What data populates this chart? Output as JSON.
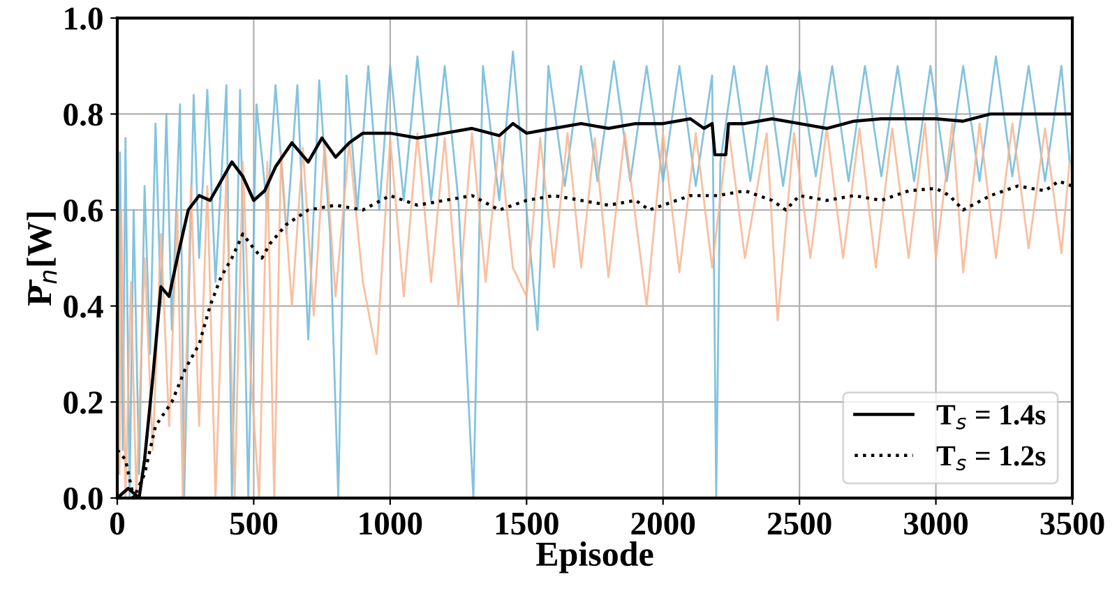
{
  "chart_data": {
    "type": "line",
    "xlabel": "Episode",
    "ylabel": "P̄$_{n}$[W]",
    "xlim": [
      0,
      3500
    ],
    "xticks": [
      0,
      500,
      1000,
      1500,
      2000,
      2500,
      3000,
      3500
    ],
    "ylim": [
      0,
      1.0
    ],
    "yticks": [
      {
        "value": 0,
        "label": "0.0"
      },
      0.2,
      0.4,
      0.6,
      0.8,
      {
        "value": 1.0,
        "label": "1.0"
      }
    ],
    "grid": true,
    "legend": "bottom right",
    "series": [
      {
        "color": "#6db9d9",
        "x": [
          0,
          10,
          20,
          30,
          45,
          60,
          80,
          100,
          120,
          140,
          160,
          180,
          200,
          230,
          245,
          280,
          300,
          330,
          360,
          400,
          420,
          450,
          480,
          510,
          550,
          580,
          620,
          660,
          700,
          740,
          780,
          810,
          840,
          880,
          920,
          960,
          1000,
          1050,
          1100,
          1150,
          1200,
          1250,
          1305,
          1340,
          1400,
          1450,
          1500,
          1540,
          1580,
          1640,
          1700,
          1760,
          1820,
          1880,
          1940,
          2000,
          2060,
          2120,
          2180,
          2195,
          2210,
          2260,
          2320,
          2380,
          2440,
          2500,
          2560,
          2620,
          2680,
          2740,
          2800,
          2860,
          2920,
          2980,
          3040,
          3100,
          3160,
          3220,
          3280,
          3340,
          3400,
          3460,
          3490
        ],
        "values": [
          0.0,
          0.72,
          0.1,
          0.75,
          0.0,
          0.6,
          0.05,
          0.65,
          0.3,
          0.78,
          0.4,
          0.8,
          0.35,
          0.82,
          0.0,
          0.84,
          0.5,
          0.85,
          0.45,
          0.86,
          0.0,
          0.85,
          0.0,
          0.82,
          0.6,
          0.86,
          0.55,
          0.86,
          0.33,
          0.87,
          0.55,
          0.0,
          0.88,
          0.6,
          0.9,
          0.6,
          0.9,
          0.62,
          0.92,
          0.62,
          0.9,
          0.62,
          0.0,
          0.9,
          0.62,
          0.93,
          0.6,
          0.35,
          0.9,
          0.65,
          0.9,
          0.66,
          0.91,
          0.66,
          0.9,
          0.66,
          0.9,
          0.65,
          0.88,
          0.0,
          0.7,
          0.9,
          0.66,
          0.9,
          0.65,
          0.89,
          0.67,
          0.9,
          0.66,
          0.9,
          0.67,
          0.9,
          0.66,
          0.9,
          0.66,
          0.9,
          0.66,
          0.92,
          0.67,
          0.9,
          0.66,
          0.9,
          0.7
        ]
      },
      {
        "color": "#f8b48e",
        "x": [
          8,
          15,
          30,
          50,
          70,
          100,
          130,
          160,
          190,
          220,
          240,
          270,
          300,
          330,
          360,
          400,
          430,
          460,
          490,
          520,
          550,
          575,
          600,
          640,
          680,
          720,
          760,
          800,
          850,
          900,
          950,
          1000,
          1050,
          1100,
          1150,
          1200,
          1250,
          1300,
          1350,
          1400,
          1450,
          1500,
          1550,
          1600,
          1650,
          1700,
          1750,
          1800,
          1860,
          1940,
          2000,
          2060,
          2120,
          2180,
          2240,
          2300,
          2380,
          2420,
          2480,
          2540,
          2600,
          2660,
          2720,
          2780,
          2840,
          2900,
          2960,
          3000,
          3060,
          3100,
          3160,
          3220,
          3280,
          3340,
          3400,
          3460,
          3490
        ],
        "values": [
          0.05,
          0.6,
          0.0,
          0.45,
          0.0,
          0.5,
          0.1,
          0.55,
          0.15,
          0.6,
          0.0,
          0.65,
          0.15,
          0.65,
          0.0,
          0.68,
          0.0,
          0.7,
          0.25,
          0.0,
          0.7,
          0.0,
          0.72,
          0.4,
          0.73,
          0.38,
          0.74,
          0.42,
          0.74,
          0.45,
          0.3,
          0.75,
          0.42,
          0.76,
          0.45,
          0.75,
          0.4,
          0.76,
          0.45,
          0.75,
          0.48,
          0.42,
          0.75,
          0.48,
          0.76,
          0.48,
          0.75,
          0.46,
          0.76,
          0.4,
          0.76,
          0.47,
          0.76,
          0.48,
          0.77,
          0.5,
          0.76,
          0.37,
          0.76,
          0.5,
          0.77,
          0.5,
          0.77,
          0.48,
          0.77,
          0.5,
          0.78,
          0.5,
          0.78,
          0.47,
          0.78,
          0.5,
          0.78,
          0.52,
          0.77,
          0.51,
          0.7
        ]
      },
      {
        "name": "T$_{s}$ = 1.4s",
        "color": "#000000",
        "line_style": "solid",
        "x": [
          0,
          40,
          80,
          100,
          130,
          160,
          190,
          220,
          260,
          300,
          340,
          380,
          420,
          460,
          500,
          540,
          580,
          640,
          700,
          750,
          800,
          850,
          900,
          1000,
          1100,
          1200,
          1300,
          1400,
          1450,
          1500,
          1600,
          1700,
          1800,
          1900,
          2000,
          2100,
          2150,
          2180,
          2190,
          2230,
          2240,
          2300,
          2400,
          2500,
          2600,
          2700,
          2800,
          2900,
          3000,
          3100,
          3200,
          3300,
          3400,
          3500
        ],
        "values": [
          0.0,
          0.02,
          0.0,
          0.08,
          0.25,
          0.44,
          0.42,
          0.5,
          0.6,
          0.63,
          0.62,
          0.66,
          0.7,
          0.67,
          0.62,
          0.64,
          0.69,
          0.74,
          0.7,
          0.75,
          0.71,
          0.74,
          0.76,
          0.76,
          0.75,
          0.76,
          0.77,
          0.755,
          0.78,
          0.76,
          0.77,
          0.78,
          0.77,
          0.78,
          0.78,
          0.79,
          0.77,
          0.78,
          0.715,
          0.715,
          0.78,
          0.78,
          0.79,
          0.78,
          0.77,
          0.785,
          0.79,
          0.79,
          0.79,
          0.785,
          0.8,
          0.8,
          0.8,
          0.8
        ]
      },
      {
        "name": "T$_{s}$ = 1.2s",
        "color": "#000000",
        "line_style": "dotted",
        "x": [
          0,
          30,
          60,
          100,
          140,
          200,
          250,
          300,
          340,
          380,
          420,
          460,
          500,
          530,
          560,
          620,
          700,
          800,
          900,
          1000,
          1100,
          1200,
          1300,
          1400,
          1500,
          1600,
          1700,
          1800,
          1900,
          1950,
          2000,
          2100,
          2200,
          2300,
          2400,
          2450,
          2500,
          2600,
          2700,
          2800,
          2900,
          3000,
          3050,
          3100,
          3200,
          3300,
          3400,
          3450,
          3500
        ],
        "values": [
          0.1,
          0.08,
          0.0,
          0.05,
          0.15,
          0.2,
          0.27,
          0.32,
          0.4,
          0.46,
          0.5,
          0.55,
          0.52,
          0.5,
          0.53,
          0.57,
          0.6,
          0.61,
          0.6,
          0.63,
          0.61,
          0.62,
          0.63,
          0.6,
          0.62,
          0.63,
          0.62,
          0.61,
          0.62,
          0.6,
          0.61,
          0.63,
          0.63,
          0.64,
          0.62,
          0.6,
          0.63,
          0.62,
          0.63,
          0.62,
          0.64,
          0.645,
          0.63,
          0.6,
          0.63,
          0.65,
          0.64,
          0.66,
          0.65
        ]
      }
    ]
  }
}
